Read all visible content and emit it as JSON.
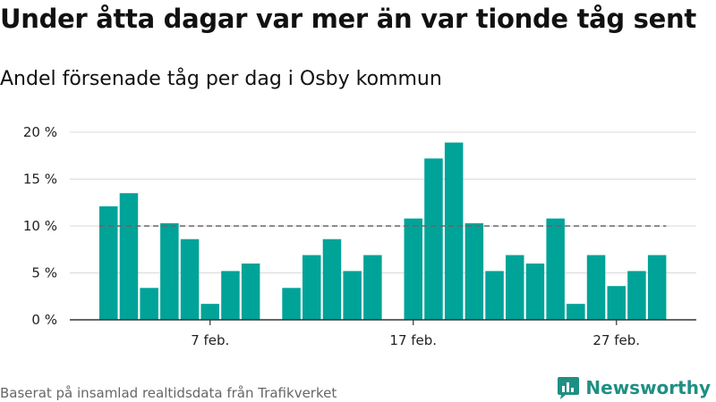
{
  "title": "Under åtta dagar var mer än var tionde tåg sent",
  "subtitle": "Andel försenade tåg per dag i Osby kommun",
  "footer": "Baserat på insamlad realtidsdata från Trafikverket",
  "brand": {
    "name": "Newsworthy",
    "icon": "newsworthy-logo-icon",
    "color": "#1f8f84"
  },
  "chart_data": {
    "type": "bar",
    "x": [
      "2 feb.",
      "3 feb.",
      "4 feb.",
      "5 feb.",
      "6 feb.",
      "7 feb.",
      "8 feb.",
      "9 feb.",
      "10 feb.",
      "11 feb.",
      "12 feb.",
      "13 feb.",
      "14 feb.",
      "15 feb.",
      "16 feb.",
      "17 feb.",
      "18 feb.",
      "19 feb.",
      "20 feb.",
      "21 feb.",
      "22 feb.",
      "23 feb.",
      "24 feb.",
      "25 feb.",
      "26 feb.",
      "27 feb.",
      "28 feb.",
      "29 feb."
    ],
    "values": [
      12.1,
      13.5,
      3.4,
      10.3,
      8.6,
      1.7,
      5.2,
      6.0,
      null,
      3.4,
      6.9,
      8.6,
      5.2,
      6.9,
      null,
      10.8,
      17.2,
      18.9,
      10.3,
      5.2,
      6.9,
      6.0,
      10.8,
      1.7,
      6.9,
      3.6,
      5.2,
      6.9
    ],
    "xticks": [
      "7 feb.",
      "17 feb.",
      "27 feb."
    ],
    "yticks": [
      "0 %",
      "5 %",
      "10 %",
      "15 %",
      "20 %"
    ],
    "ylim": [
      0,
      20
    ],
    "reference_line": 10,
    "bar_color": "#00a398",
    "grid": true
  }
}
